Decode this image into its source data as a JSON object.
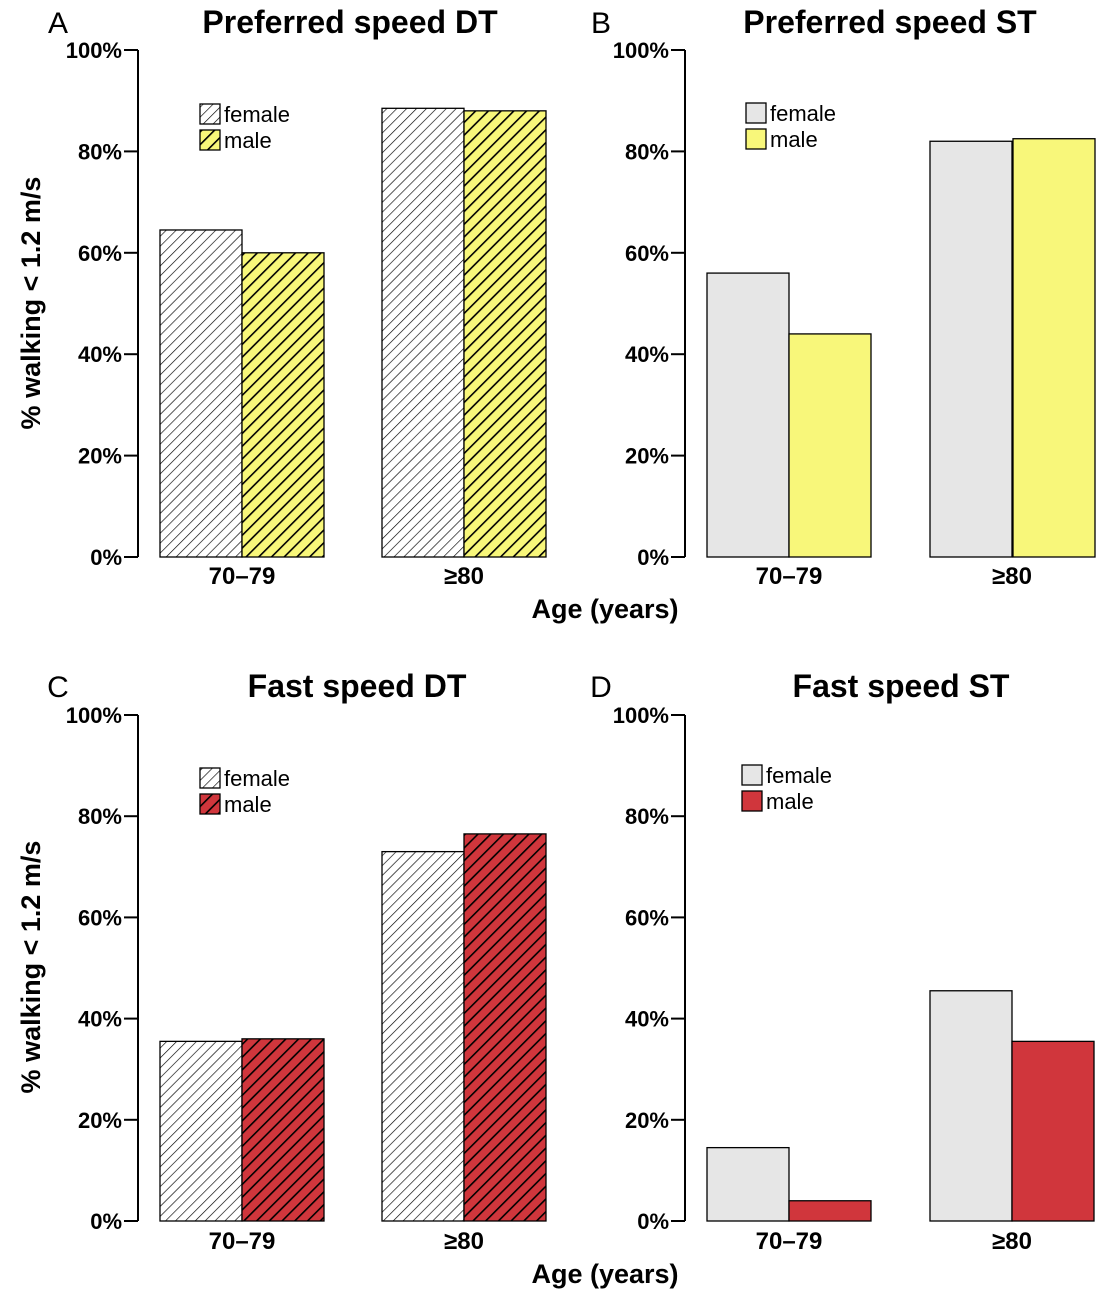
{
  "figure": {
    "ylabel_top": "% walking < 1.2 m/s",
    "ylabel_bottom": "% walking < 1.2 m/s",
    "xlabel_top": "Age (years)",
    "xlabel_bottom": "Age (years)"
  },
  "colors": {
    "female_fill": "#e6e6e6",
    "yellow": "#f8f77a",
    "red": "#d0363c",
    "edge": "#000000"
  },
  "chart_data": [
    {
      "type": "bar",
      "panel": "A",
      "title": "Preferred speed DT",
      "categories": [
        "70–79",
        "≥80"
      ],
      "series": [
        {
          "name": "female",
          "values": [
            64.5,
            88.5
          ]
        },
        {
          "name": "male",
          "values": [
            60,
            88
          ]
        }
      ],
      "ylim": [
        0,
        100
      ],
      "yticks": [
        "0%",
        "20%",
        "40%",
        "60%",
        "80%",
        "100%"
      ],
      "hatched": true,
      "male_color": "yellow",
      "legend_position": "top-left"
    },
    {
      "type": "bar",
      "panel": "B",
      "title": "Preferred speed ST",
      "categories": [
        "70–79",
        "≥80"
      ],
      "series": [
        {
          "name": "female",
          "values": [
            56,
            82
          ]
        },
        {
          "name": "male",
          "values": [
            44,
            82.5
          ]
        }
      ],
      "ylim": [
        0,
        100
      ],
      "yticks": [
        "0%",
        "20%",
        "40%",
        "60%",
        "80%",
        "100%"
      ],
      "hatched": false,
      "male_color": "yellow",
      "legend_position": "top-left"
    },
    {
      "type": "bar",
      "panel": "C",
      "title": "Fast speed DT",
      "categories": [
        "70–79",
        "≥80"
      ],
      "series": [
        {
          "name": "female",
          "values": [
            35.5,
            73
          ]
        },
        {
          "name": "male",
          "values": [
            36,
            76.5
          ]
        }
      ],
      "ylim": [
        0,
        100
      ],
      "yticks": [
        "0%",
        "20%",
        "40%",
        "60%",
        "80%",
        "100%"
      ],
      "hatched": true,
      "male_color": "red",
      "legend_position": "top-left"
    },
    {
      "type": "bar",
      "panel": "D",
      "title": "Fast speed ST",
      "categories": [
        "70–79",
        "≥80"
      ],
      "series": [
        {
          "name": "female",
          "values": [
            14.5,
            45.5
          ]
        },
        {
          "name": "male",
          "values": [
            4,
            35.5
          ]
        }
      ],
      "ylim": [
        0,
        100
      ],
      "yticks": [
        "0%",
        "20%",
        "40%",
        "60%",
        "80%",
        "100%"
      ],
      "hatched": false,
      "male_color": "red",
      "legend_position": "top-left"
    }
  ]
}
